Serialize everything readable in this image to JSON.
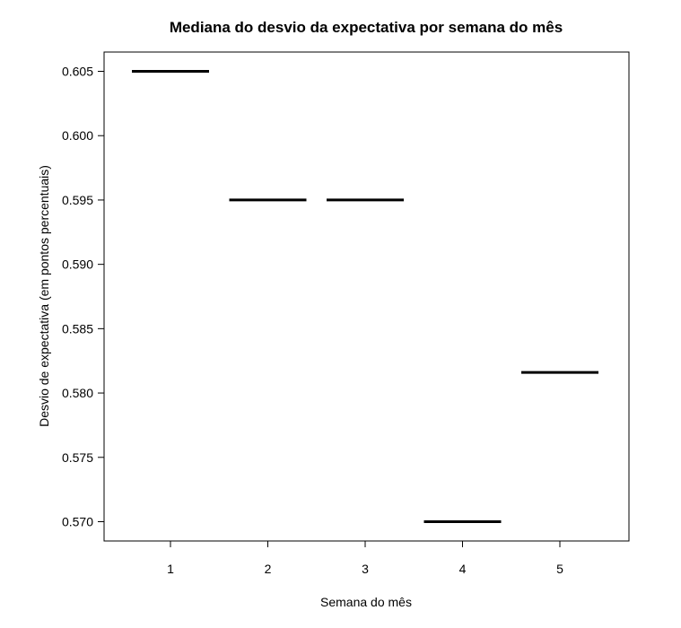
{
  "chart_data": {
    "type": "bar",
    "title": "Mediana do desvio da expectativa por semana do mês",
    "xlabel": "Semana do mês",
    "ylabel": "Desvio de expectativa (em pontos percentuais)",
    "categories": [
      "1",
      "2",
      "3",
      "4",
      "5"
    ],
    "values": [
      0.605,
      0.595,
      0.595,
      0.57,
      0.5816
    ],
    "ylim": [
      0.5685,
      0.6065
    ],
    "yticks": [
      "0.570",
      "0.575",
      "0.580",
      "0.585",
      "0.590",
      "0.595",
      "0.600",
      "0.605"
    ],
    "grid": false,
    "legend": "none",
    "mark_style": "median segments (boxplot with no spread)",
    "colors": {
      "line": "#000000",
      "frame": "#000000",
      "background": "#ffffff"
    }
  }
}
